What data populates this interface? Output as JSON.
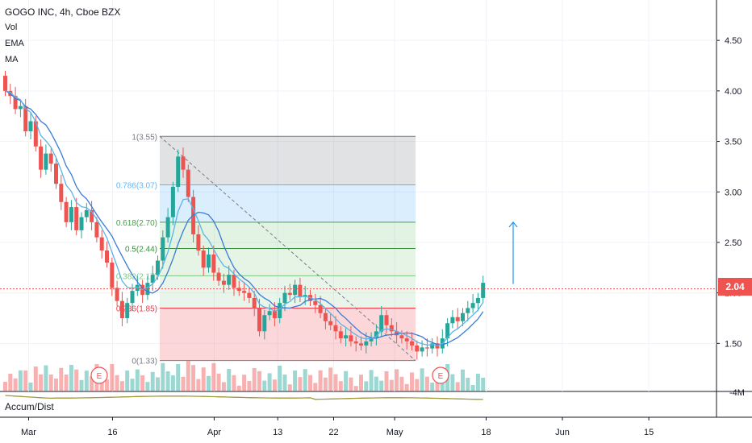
{
  "legend": {
    "title": "GOGO INC, 4h, Cboe BZX",
    "indicators": [
      "Vol",
      "EMA",
      "MA"
    ]
  },
  "price_tag": "2.04",
  "lower_pane": {
    "label": "Accum/Dist",
    "axis_label": "-4M"
  },
  "earnings_markers": [
    "E",
    "E"
  ],
  "colors": {
    "up": "#26a69a",
    "down": "#ef5350",
    "ma": "#3a7bd5",
    "ema": "#5ab4e8",
    "accum": "#9e9a3a",
    "price_line": "#ef5350",
    "arrow": "#2196f3"
  },
  "chart_data": {
    "type": "candlestick",
    "y_range": [
      1.12,
      4.9
    ],
    "y_ticks": [
      "4.50",
      "4.00",
      "3.50",
      "3.00",
      "2.50",
      "2.00",
      "1.50"
    ],
    "x_ticks": [
      "Mar",
      "16",
      "Apr",
      "13",
      "22",
      "May",
      "18",
      "Jun",
      "15"
    ],
    "closes": [
      4.0,
      3.95,
      3.82,
      3.85,
      3.6,
      3.7,
      3.45,
      3.22,
      3.38,
      3.28,
      3.08,
      2.9,
      2.7,
      2.85,
      2.62,
      2.75,
      2.82,
      2.7,
      2.55,
      2.42,
      2.3,
      2.05,
      1.92,
      1.75,
      1.9,
      2.02,
      2.08,
      1.98,
      2.1,
      2.18,
      2.32,
      2.55,
      2.75,
      3.05,
      3.35,
      3.22,
      2.95,
      2.58,
      2.42,
      2.25,
      2.38,
      2.2,
      2.12,
      2.08,
      2.18,
      2.05,
      2.02,
      2.0,
      1.95,
      1.85,
      1.62,
      1.78,
      1.82,
      1.75,
      1.9,
      2.0,
      1.98,
      2.08,
      1.96,
      1.98,
      1.92,
      1.88,
      1.8,
      1.72,
      1.68,
      1.62,
      1.55,
      1.58,
      1.52,
      1.5,
      1.48,
      1.52,
      1.56,
      1.62,
      1.78,
      1.68,
      1.62,
      1.58,
      1.55,
      1.52,
      1.48,
      1.42,
      1.46,
      1.45,
      1.5,
      1.45,
      1.55,
      1.7,
      1.76,
      1.72,
      1.8,
      1.85,
      1.9,
      1.95,
      2.1
    ],
    "fib_levels": [
      {
        "ratio": "1",
        "price": 3.55,
        "label": "1(3.55)"
      },
      {
        "ratio": "0.786",
        "price": 3.07,
        "label": "0.786(3.07)"
      },
      {
        "ratio": "0.618",
        "price": 2.7,
        "label": "0.618(2.70)"
      },
      {
        "ratio": "0.5",
        "price": 2.44,
        "label": "0.5(2.44)"
      },
      {
        "ratio": "0.382",
        "price": 2.17,
        "label": "0.382(2.17)"
      },
      {
        "ratio": "0.236",
        "price": 1.85,
        "label": "0.236(1.85)"
      },
      {
        "ratio": "0",
        "price": 1.33,
        "label": "0(1.33)"
      }
    ],
    "last_price": 2.04,
    "arrow_target": 2.7
  }
}
